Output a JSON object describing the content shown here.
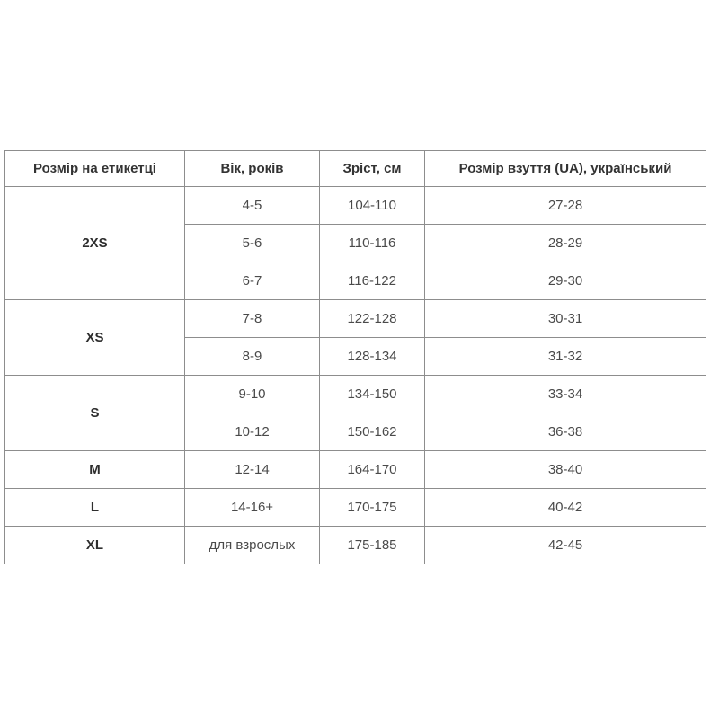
{
  "colors": {
    "page_background": "#ffffff",
    "table_border": "#8d8d8d",
    "header_text": "#333333",
    "cell_text": "#4a4a4a",
    "size_label_text": "#2e2e2e"
  },
  "table": {
    "headers": {
      "size": "Розмір на етикетці",
      "age": "Вік, років",
      "height": "Зріст, см",
      "shoe": "Розмір взуття (UA), український"
    },
    "groups": [
      {
        "size": "2XS",
        "rows": [
          {
            "age": "4-5",
            "height": "104-110",
            "shoe": "27-28"
          },
          {
            "age": "5-6",
            "height": "110-116",
            "shoe": "28-29"
          },
          {
            "age": "6-7",
            "height": "116-122",
            "shoe": "29-30"
          }
        ]
      },
      {
        "size": "XS",
        "rows": [
          {
            "age": "7-8",
            "height": "122-128",
            "shoe": "30-31"
          },
          {
            "age": "8-9",
            "height": "128-134",
            "shoe": "31-32"
          }
        ]
      },
      {
        "size": "S",
        "rows": [
          {
            "age": "9-10",
            "height": "134-150",
            "shoe": "33-34"
          },
          {
            "age": "10-12",
            "height": "150-162",
            "shoe": "36-38"
          }
        ]
      },
      {
        "size": "M",
        "rows": [
          {
            "age": "12-14",
            "height": "164-170",
            "shoe": "38-40"
          }
        ]
      },
      {
        "size": "L",
        "rows": [
          {
            "age": "14-16+",
            "height": "170-175",
            "shoe": "40-42"
          }
        ]
      },
      {
        "size": "XL",
        "rows": [
          {
            "age": "для взрослых",
            "height": "175-185",
            "shoe": "42-45"
          }
        ]
      }
    ]
  }
}
